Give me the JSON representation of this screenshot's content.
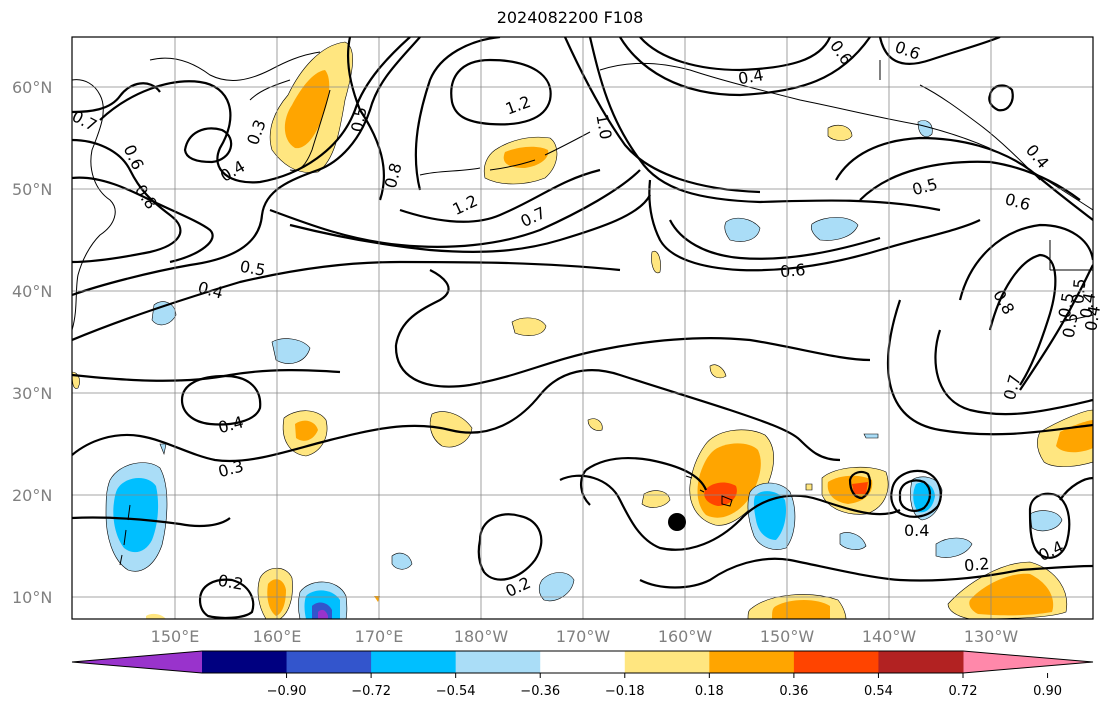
{
  "title": "2024082200 F108",
  "lat_labels": [
    "60°N",
    "50°N",
    "40°N",
    "30°N",
    "20°N",
    "10°N"
  ],
  "lon_labels": [
    "150°E",
    "160°E",
    "170°E",
    "180°W",
    "170°W",
    "160°W",
    "150°W",
    "140°W",
    "130°W"
  ],
  "contour_labels": [
    "0.7",
    "0.6",
    "0.8",
    "0.3",
    "0.4",
    "0.5",
    "1.2",
    "1.0",
    "0.8",
    "0.5",
    "0.4",
    "0.6",
    "1.2",
    "0.7",
    "0.6",
    "0.5",
    "0.4",
    "0.5",
    "0.6",
    "0.4",
    "0.6",
    "0.5",
    "0.4",
    "0.8",
    "0.7",
    "0.5",
    "0.4",
    "0.3",
    "0.4",
    "0.2",
    "0.2",
    "0.2",
    "0.4",
    "0.4"
  ],
  "colorbar": {
    "ticks": [
      "−0.90",
      "−0.72",
      "−0.54",
      "−0.36",
      "−0.18",
      "0.18",
      "0.36",
      "0.54",
      "0.72",
      "0.90"
    ],
    "colors": [
      "#9933cc",
      "#000080",
      "#3355cc",
      "#00bfff",
      "#aaddf7",
      "#ffffff",
      "#ffe680",
      "#ffa500",
      "#ff4400",
      "#b22222",
      "#ff88aa"
    ]
  },
  "colors": {
    "pos_low": "#ffe680",
    "pos_mid": "#ffa500",
    "pos_high": "#ff4400",
    "neg_low": "#aaddf7",
    "neg_mid": "#00bfff",
    "neg_high": "#3355cc",
    "neg_max": "#9933cc"
  },
  "marker": "black-dot"
}
